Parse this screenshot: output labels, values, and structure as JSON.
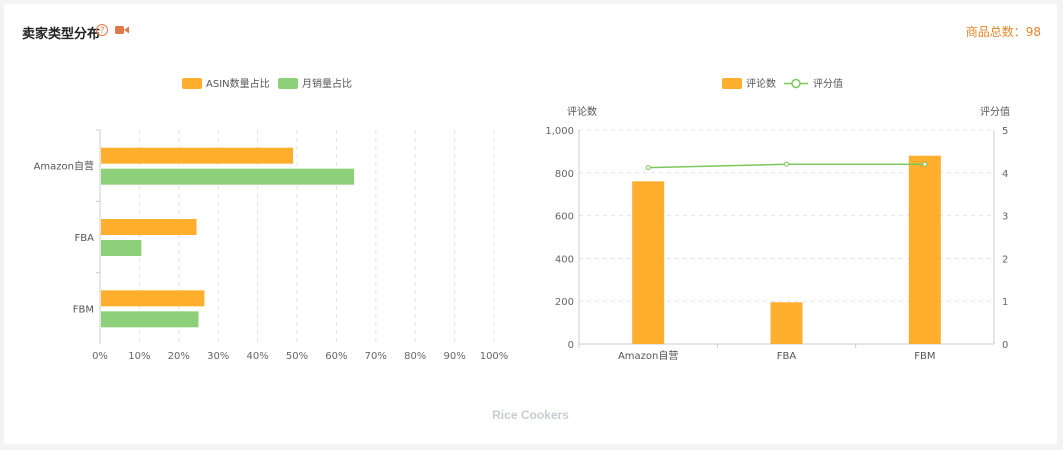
{
  "header": {
    "title": "卖家类型分布",
    "total_label": "商品总数：98",
    "help_icon": "question-circle-icon",
    "video_icon": "video-camera-icon"
  },
  "colors": {
    "orange": "#FFAE2E",
    "green": "#8ECF7A",
    "line": "#7CC85C",
    "accent_text": "#E8852A"
  },
  "chart_data": [
    {
      "type": "bar",
      "orientation": "horizontal",
      "categories": [
        "Amazon自营",
        "FBA",
        "FBM"
      ],
      "series": [
        {
          "name": "ASIN数量占比",
          "values": [
            0.49,
            0.245,
            0.265
          ]
        },
        {
          "name": "月销量占比",
          "values": [
            0.645,
            0.105,
            0.25
          ]
        }
      ],
      "xlim": [
        0,
        1
      ],
      "x_ticks": [
        "0%",
        "10%",
        "20%",
        "30%",
        "40%",
        "50%",
        "60%",
        "70%",
        "80%",
        "90%",
        "100%"
      ],
      "grid": true,
      "legend": "top-center"
    },
    {
      "type": "bar",
      "categories": [
        "Amazon自营",
        "FBA",
        "FBM"
      ],
      "series": [
        {
          "name": "评论数",
          "type": "bar",
          "axis": "left",
          "values": [
            760,
            195,
            880
          ]
        },
        {
          "name": "评分值",
          "type": "line",
          "axis": "right",
          "values": [
            4.12,
            4.2,
            4.2
          ]
        }
      ],
      "ylabel": "评论数",
      "ylabel_right": "评分值",
      "ylim": [
        0,
        1000
      ],
      "ylim_right": [
        0,
        5
      ],
      "y_ticks": [
        "0",
        "200",
        "400",
        "600",
        "800",
        "1,000"
      ],
      "y_ticks_right": [
        "0",
        "1",
        "2",
        "3",
        "4",
        "5"
      ],
      "grid": true,
      "legend": "top-center"
    }
  ],
  "footer": {
    "label": "Rice Cookers"
  }
}
